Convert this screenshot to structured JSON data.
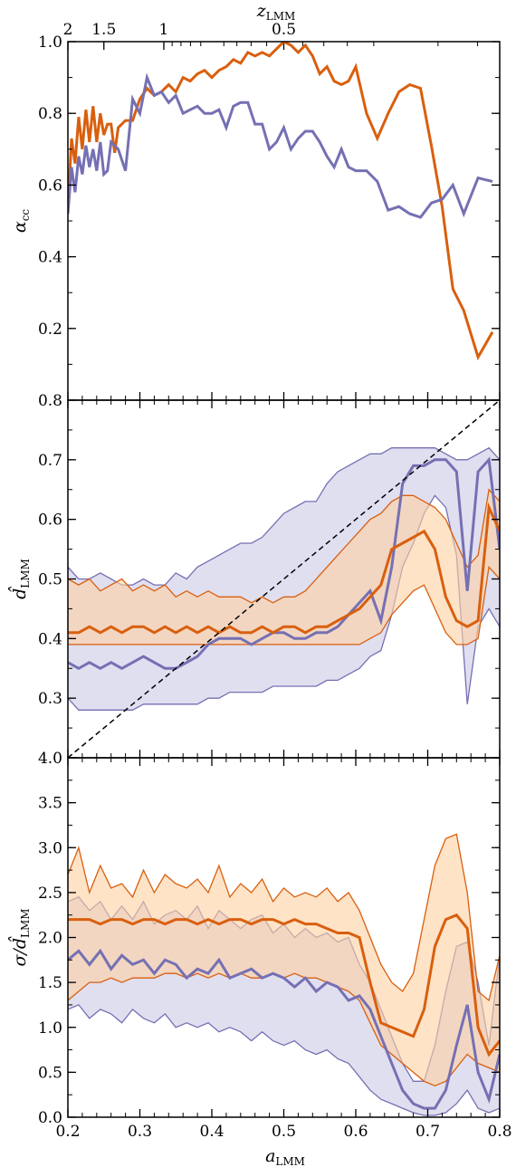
{
  "colors": {
    "orange": "#d95f0e",
    "purple": "#7570b3",
    "orange_fill": "#fdd0a2",
    "purple_fill": "#cbc9e6"
  },
  "top_axis": {
    "label_main": "z",
    "label_sub": "LMM",
    "ticks": [
      {
        "label": "2",
        "a": 0.2
      },
      {
        "label": "1.5",
        "a": 0.25
      },
      {
        "label": "1",
        "a": 0.3333
      },
      {
        "label": "0.5",
        "a": 0.5
      }
    ]
  },
  "chart_data": [
    {
      "type": "line",
      "ylabel_main": "α",
      "ylabel_sub": "cc",
      "ylim": [
        0.0,
        1.0
      ],
      "xlim": [
        0.2,
        0.8
      ],
      "yticks": [
        {
          "v": 0.2,
          "label": "0.2"
        },
        {
          "v": 0.4,
          "label": "0.4"
        },
        {
          "v": 0.6,
          "label": "0.6"
        },
        {
          "v": 0.8,
          "label": "0.8"
        },
        {
          "v": 1.0,
          "label": "1.0"
        }
      ],
      "series": [
        {
          "color": "orange",
          "x": [
            0.2,
            0.205,
            0.21,
            0.215,
            0.22,
            0.225,
            0.23,
            0.235,
            0.24,
            0.245,
            0.25,
            0.255,
            0.26,
            0.265,
            0.27,
            0.28,
            0.29,
            0.3,
            0.31,
            0.32,
            0.33,
            0.34,
            0.35,
            0.36,
            0.37,
            0.38,
            0.39,
            0.4,
            0.41,
            0.42,
            0.43,
            0.44,
            0.45,
            0.46,
            0.47,
            0.48,
            0.49,
            0.5,
            0.51,
            0.52,
            0.53,
            0.54,
            0.55,
            0.56,
            0.57,
            0.58,
            0.59,
            0.6,
            0.615,
            0.63,
            0.645,
            0.66,
            0.675,
            0.69,
            0.705,
            0.72,
            0.735,
            0.75,
            0.77,
            0.79
          ],
          "y": [
            0.53,
            0.73,
            0.66,
            0.79,
            0.7,
            0.81,
            0.72,
            0.82,
            0.72,
            0.8,
            0.74,
            0.77,
            0.77,
            0.69,
            0.76,
            0.78,
            0.78,
            0.84,
            0.87,
            0.85,
            0.86,
            0.88,
            0.86,
            0.9,
            0.89,
            0.91,
            0.92,
            0.9,
            0.92,
            0.93,
            0.95,
            0.94,
            0.97,
            0.96,
            0.97,
            0.96,
            0.98,
            1.0,
            0.99,
            0.97,
            0.99,
            0.96,
            0.91,
            0.93,
            0.89,
            0.88,
            0.89,
            0.93,
            0.8,
            0.73,
            0.8,
            0.86,
            0.88,
            0.87,
            0.71,
            0.54,
            0.31,
            0.25,
            0.12,
            0.19
          ]
        },
        {
          "color": "purple",
          "x": [
            0.2,
            0.205,
            0.21,
            0.215,
            0.22,
            0.225,
            0.23,
            0.235,
            0.24,
            0.245,
            0.25,
            0.255,
            0.26,
            0.265,
            0.27,
            0.28,
            0.29,
            0.3,
            0.31,
            0.32,
            0.33,
            0.34,
            0.35,
            0.36,
            0.37,
            0.38,
            0.39,
            0.4,
            0.41,
            0.42,
            0.43,
            0.44,
            0.45,
            0.46,
            0.47,
            0.48,
            0.49,
            0.5,
            0.51,
            0.52,
            0.53,
            0.54,
            0.55,
            0.56,
            0.57,
            0.58,
            0.59,
            0.6,
            0.615,
            0.63,
            0.645,
            0.66,
            0.675,
            0.69,
            0.705,
            0.72,
            0.735,
            0.75,
            0.77,
            0.79
          ],
          "y": [
            0.52,
            0.65,
            0.58,
            0.68,
            0.63,
            0.71,
            0.65,
            0.7,
            0.64,
            0.72,
            0.63,
            0.64,
            0.72,
            0.71,
            0.7,
            0.64,
            0.84,
            0.8,
            0.9,
            0.85,
            0.86,
            0.83,
            0.85,
            0.8,
            0.81,
            0.82,
            0.8,
            0.8,
            0.81,
            0.76,
            0.82,
            0.83,
            0.83,
            0.77,
            0.77,
            0.7,
            0.72,
            0.76,
            0.7,
            0.73,
            0.75,
            0.75,
            0.72,
            0.68,
            0.65,
            0.7,
            0.65,
            0.64,
            0.64,
            0.61,
            0.53,
            0.54,
            0.52,
            0.51,
            0.55,
            0.56,
            0.6,
            0.52,
            0.62,
            0.61
          ]
        }
      ]
    },
    {
      "type": "area",
      "ylabel_main": "d̂",
      "ylabel_sub": "LMM",
      "ylim": [
        0.2,
        0.8
      ],
      "xlim": [
        0.2,
        0.8
      ],
      "yticks": [
        {
          "v": 0.3,
          "label": "0.3"
        },
        {
          "v": 0.4,
          "label": "0.4"
        },
        {
          "v": 0.5,
          "label": "0.5"
        },
        {
          "v": 0.6,
          "label": "0.6"
        },
        {
          "v": 0.7,
          "label": "0.7"
        },
        {
          "v": 0.8,
          "label": "0.8"
        }
      ],
      "diagonal": true,
      "series": [
        {
          "color": "purple",
          "x": [
            0.2,
            0.215,
            0.23,
            0.245,
            0.26,
            0.275,
            0.29,
            0.305,
            0.32,
            0.335,
            0.35,
            0.365,
            0.38,
            0.395,
            0.41,
            0.425,
            0.44,
            0.455,
            0.47,
            0.485,
            0.5,
            0.515,
            0.53,
            0.545,
            0.56,
            0.575,
            0.59,
            0.605,
            0.62,
            0.635,
            0.65,
            0.665,
            0.68,
            0.695,
            0.71,
            0.725,
            0.74,
            0.755,
            0.77,
            0.785,
            0.8
          ],
          "mid": [
            0.36,
            0.35,
            0.36,
            0.35,
            0.36,
            0.35,
            0.36,
            0.37,
            0.36,
            0.35,
            0.35,
            0.36,
            0.37,
            0.39,
            0.4,
            0.4,
            0.4,
            0.39,
            0.4,
            0.41,
            0.41,
            0.4,
            0.4,
            0.41,
            0.41,
            0.42,
            0.44,
            0.46,
            0.48,
            0.43,
            0.52,
            0.66,
            0.69,
            0.69,
            0.7,
            0.7,
            0.68,
            0.48,
            0.68,
            0.7,
            0.55
          ],
          "lo": [
            0.3,
            0.28,
            0.28,
            0.28,
            0.28,
            0.28,
            0.28,
            0.29,
            0.29,
            0.29,
            0.29,
            0.29,
            0.29,
            0.3,
            0.3,
            0.31,
            0.31,
            0.31,
            0.31,
            0.32,
            0.32,
            0.32,
            0.32,
            0.32,
            0.33,
            0.33,
            0.34,
            0.35,
            0.37,
            0.38,
            0.44,
            0.52,
            0.56,
            0.61,
            0.64,
            0.62,
            0.54,
            0.29,
            0.42,
            0.45,
            0.42
          ],
          "hi": [
            0.52,
            0.5,
            0.5,
            0.51,
            0.5,
            0.49,
            0.49,
            0.5,
            0.49,
            0.49,
            0.51,
            0.5,
            0.52,
            0.53,
            0.54,
            0.55,
            0.56,
            0.56,
            0.57,
            0.59,
            0.61,
            0.62,
            0.63,
            0.63,
            0.66,
            0.68,
            0.69,
            0.7,
            0.71,
            0.71,
            0.72,
            0.72,
            0.72,
            0.72,
            0.72,
            0.71,
            0.7,
            0.7,
            0.71,
            0.72,
            0.7
          ]
        },
        {
          "color": "orange",
          "x": [
            0.2,
            0.215,
            0.23,
            0.245,
            0.26,
            0.275,
            0.29,
            0.305,
            0.32,
            0.335,
            0.35,
            0.365,
            0.38,
            0.395,
            0.41,
            0.425,
            0.44,
            0.455,
            0.47,
            0.485,
            0.5,
            0.515,
            0.53,
            0.545,
            0.56,
            0.575,
            0.59,
            0.605,
            0.62,
            0.635,
            0.65,
            0.665,
            0.68,
            0.695,
            0.71,
            0.725,
            0.74,
            0.755,
            0.77,
            0.785,
            0.8
          ],
          "mid": [
            0.41,
            0.41,
            0.42,
            0.41,
            0.42,
            0.41,
            0.42,
            0.42,
            0.41,
            0.42,
            0.41,
            0.42,
            0.41,
            0.42,
            0.41,
            0.42,
            0.41,
            0.41,
            0.42,
            0.41,
            0.42,
            0.42,
            0.41,
            0.42,
            0.42,
            0.43,
            0.44,
            0.45,
            0.47,
            0.49,
            0.55,
            0.56,
            0.57,
            0.58,
            0.55,
            0.47,
            0.43,
            0.42,
            0.43,
            0.62,
            0.58
          ],
          "lo": [
            0.39,
            0.39,
            0.39,
            0.39,
            0.39,
            0.39,
            0.39,
            0.39,
            0.39,
            0.39,
            0.39,
            0.39,
            0.39,
            0.39,
            0.39,
            0.39,
            0.39,
            0.39,
            0.39,
            0.39,
            0.39,
            0.39,
            0.39,
            0.39,
            0.39,
            0.39,
            0.39,
            0.39,
            0.4,
            0.41,
            0.44,
            0.46,
            0.48,
            0.49,
            0.45,
            0.41,
            0.39,
            0.39,
            0.4,
            0.52,
            0.5
          ],
          "hi": [
            0.5,
            0.49,
            0.5,
            0.48,
            0.49,
            0.5,
            0.48,
            0.49,
            0.48,
            0.49,
            0.47,
            0.48,
            0.47,
            0.48,
            0.47,
            0.47,
            0.47,
            0.46,
            0.47,
            0.46,
            0.47,
            0.47,
            0.48,
            0.5,
            0.52,
            0.54,
            0.56,
            0.58,
            0.6,
            0.61,
            0.63,
            0.64,
            0.64,
            0.63,
            0.62,
            0.6,
            0.56,
            0.52,
            0.54,
            0.65,
            0.63
          ]
        }
      ]
    },
    {
      "type": "area",
      "ylabel_main": "σ/d̂",
      "ylabel_sub": "LMM",
      "ylim": [
        0.0,
        4.0
      ],
      "xlim": [
        0.2,
        0.8
      ],
      "yticks": [
        {
          "v": 0.0,
          "label": "0.0"
        },
        {
          "v": 0.5,
          "label": "0.5"
        },
        {
          "v": 1.0,
          "label": "1.0"
        },
        {
          "v": 1.5,
          "label": "1.5"
        },
        {
          "v": 2.0,
          "label": "2.0"
        },
        {
          "v": 2.5,
          "label": "2.5"
        },
        {
          "v": 3.0,
          "label": "3.0"
        },
        {
          "v": 3.5,
          "label": "3.5"
        },
        {
          "v": 4.0,
          "label": "4.0"
        }
      ],
      "xticks": [
        {
          "v": 0.2,
          "label": "0.2"
        },
        {
          "v": 0.3,
          "label": "0.3"
        },
        {
          "v": 0.4,
          "label": "0.4"
        },
        {
          "v": 0.5,
          "label": "0.5"
        },
        {
          "v": 0.6,
          "label": "0.6"
        },
        {
          "v": 0.7,
          "label": "0.7"
        },
        {
          "v": 0.8,
          "label": "0.8"
        }
      ],
      "xlabel_main": "a",
      "xlabel_sub": "LMM",
      "series": [
        {
          "color": "purple",
          "x": [
            0.2,
            0.215,
            0.23,
            0.245,
            0.26,
            0.275,
            0.29,
            0.305,
            0.32,
            0.335,
            0.35,
            0.365,
            0.38,
            0.395,
            0.41,
            0.425,
            0.44,
            0.455,
            0.47,
            0.485,
            0.5,
            0.515,
            0.53,
            0.545,
            0.56,
            0.575,
            0.59,
            0.605,
            0.62,
            0.635,
            0.65,
            0.665,
            0.68,
            0.695,
            0.71,
            0.725,
            0.74,
            0.755,
            0.77,
            0.785,
            0.8
          ],
          "mid": [
            1.75,
            1.85,
            1.7,
            1.85,
            1.65,
            1.8,
            1.7,
            1.75,
            1.6,
            1.75,
            1.7,
            1.55,
            1.65,
            1.6,
            1.75,
            1.55,
            1.6,
            1.65,
            1.55,
            1.6,
            1.55,
            1.45,
            1.55,
            1.4,
            1.5,
            1.45,
            1.3,
            1.35,
            1.2,
            0.9,
            0.6,
            0.3,
            0.15,
            0.1,
            0.1,
            0.3,
            0.8,
            1.25,
            0.5,
            0.2,
            0.7
          ],
          "lo": [
            1.2,
            1.25,
            1.1,
            1.2,
            1.15,
            1.05,
            1.2,
            1.1,
            1.05,
            1.15,
            1.0,
            1.05,
            1.0,
            1.05,
            0.95,
            1.0,
            0.95,
            0.85,
            0.95,
            0.85,
            0.8,
            0.85,
            0.75,
            0.7,
            0.75,
            0.65,
            0.6,
            0.45,
            0.3,
            0.2,
            0.15,
            0.1,
            0.05,
            0.02,
            0.02,
            0.05,
            0.15,
            0.3,
            0.1,
            0.05,
            0.1
          ],
          "hi": [
            2.4,
            2.45,
            2.3,
            2.4,
            2.2,
            2.35,
            2.2,
            2.4,
            2.15,
            2.25,
            2.3,
            2.2,
            2.35,
            2.1,
            2.3,
            2.2,
            2.1,
            2.2,
            2.25,
            2.05,
            2.15,
            2.0,
            2.1,
            2.0,
            2.05,
            1.95,
            2.0,
            1.7,
            1.5,
            1.2,
            0.9,
            0.6,
            0.4,
            0.4,
            0.8,
            1.4,
            1.9,
            1.95,
            1.5,
            0.8,
            1.8
          ]
        },
        {
          "color": "orange",
          "x": [
            0.2,
            0.215,
            0.23,
            0.245,
            0.26,
            0.275,
            0.29,
            0.305,
            0.32,
            0.335,
            0.35,
            0.365,
            0.38,
            0.395,
            0.41,
            0.425,
            0.44,
            0.455,
            0.47,
            0.485,
            0.5,
            0.515,
            0.53,
            0.545,
            0.56,
            0.575,
            0.59,
            0.605,
            0.62,
            0.635,
            0.65,
            0.665,
            0.68,
            0.695,
            0.71,
            0.725,
            0.74,
            0.755,
            0.77,
            0.785,
            0.8
          ],
          "mid": [
            2.2,
            2.2,
            2.2,
            2.15,
            2.2,
            2.2,
            2.15,
            2.2,
            2.2,
            2.15,
            2.2,
            2.2,
            2.15,
            2.2,
            2.15,
            2.2,
            2.2,
            2.15,
            2.2,
            2.2,
            2.15,
            2.2,
            2.15,
            2.15,
            2.1,
            2.05,
            2.05,
            2.0,
            1.5,
            1.05,
            1.0,
            0.95,
            0.9,
            1.2,
            1.9,
            2.2,
            2.25,
            2.1,
            1.0,
            0.7,
            0.85
          ],
          "lo": [
            1.3,
            1.4,
            1.5,
            1.5,
            1.55,
            1.5,
            1.55,
            1.55,
            1.55,
            1.6,
            1.6,
            1.55,
            1.6,
            1.55,
            1.6,
            1.55,
            1.6,
            1.55,
            1.55,
            1.6,
            1.55,
            1.6,
            1.55,
            1.55,
            1.5,
            1.45,
            1.4,
            1.3,
            1.05,
            0.8,
            0.7,
            0.6,
            0.5,
            0.4,
            0.35,
            0.4,
            0.55,
            0.7,
            0.6,
            0.55,
            0.5
          ],
          "hi": [
            2.7,
            3.0,
            2.5,
            2.8,
            2.55,
            2.6,
            2.45,
            2.75,
            2.5,
            2.7,
            2.6,
            2.55,
            2.65,
            2.5,
            2.8,
            2.45,
            2.6,
            2.5,
            2.65,
            2.4,
            2.55,
            2.45,
            2.5,
            2.45,
            2.55,
            2.4,
            2.5,
            2.3,
            2.0,
            1.7,
            1.5,
            1.4,
            1.6,
            2.2,
            2.8,
            3.1,
            3.15,
            2.5,
            1.4,
            1.3,
            1.8
          ]
        }
      ]
    }
  ]
}
